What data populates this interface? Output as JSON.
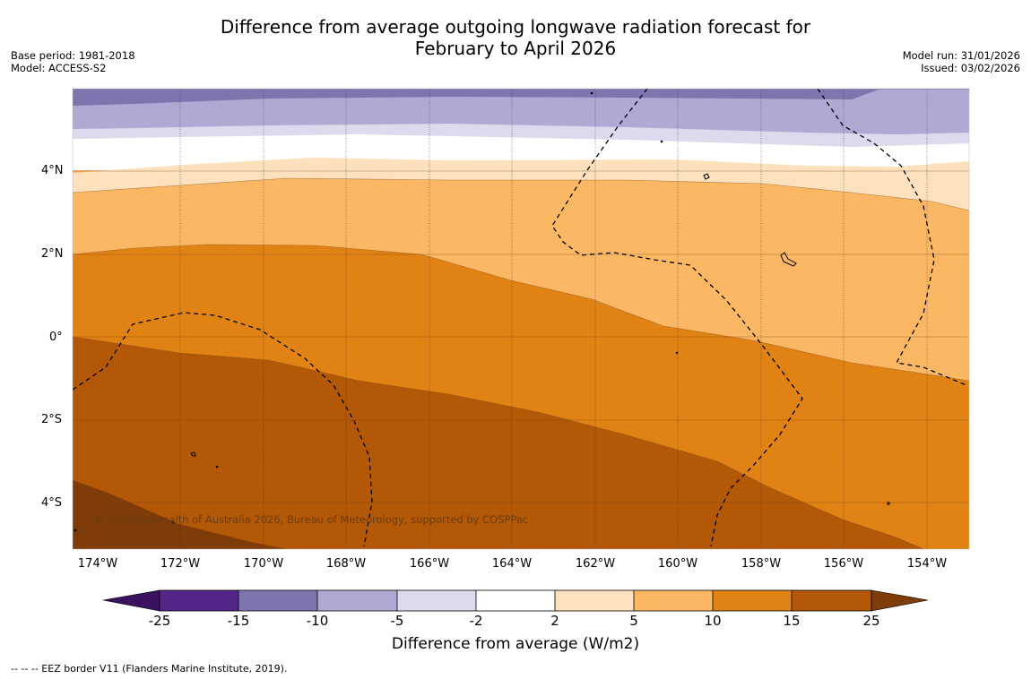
{
  "title": {
    "line1": "Difference from average outgoing longwave radiation forecast for",
    "line2": "February to April 2026"
  },
  "meta_left": {
    "base_period": "Base period: 1981-2018",
    "model": "Model: ACCESS-S2"
  },
  "meta_right": {
    "model_run": "Model run: 31/01/2026",
    "issued": "Issued: 03/02/2026"
  },
  "map": {
    "lat_labels": [
      "4°N",
      "2°N",
      "0°",
      "2°S",
      "4°S"
    ],
    "lon_labels": [
      "174°W",
      "172°W",
      "170°W",
      "168°W",
      "166°W",
      "164°W",
      "162°W",
      "160°W",
      "158°W",
      "156°W",
      "154°W"
    ],
    "copyright": "© Commonwealth of Australia 2026, Bureau of Meteorology, supported by COSPPac"
  },
  "colorbar": {
    "ticks": [
      "-25",
      "-15",
      "-10",
      "-5",
      "-2",
      "2",
      "5",
      "10",
      "15",
      "25"
    ],
    "colors": [
      "#3b1260",
      "#54268a",
      "#7e74ae",
      "#b0a9d3",
      "#dcdaec",
      "#ffffff",
      "#fde0bc",
      "#fbb763",
      "#e08214",
      "#b35806",
      "#7f3b08"
    ],
    "title": "Difference from average (W/m2)"
  },
  "footnote": "--  --  -- EEZ border V11 (Flanders Marine Institute, 2019)."
}
